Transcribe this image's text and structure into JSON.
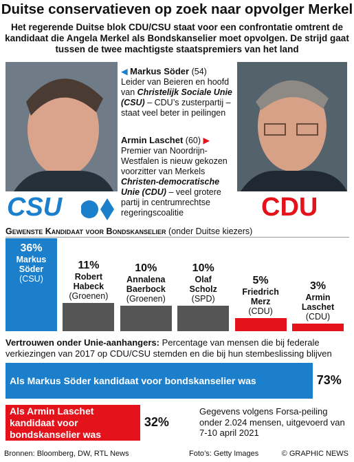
{
  "header": {
    "title": "Duitse conservatieven op zoek naar opvolger Merkel",
    "subtitle": "Het regerende Duitse blok CDU/CSU staat voor een confrontatie omtrent de kandidaat die Angela Merkel als Bondskanselier moet opvolgen. De strijd gaat tussen de twee machtigste staatspremiers van het land"
  },
  "profiles": [
    {
      "name": "Markus Söder",
      "age": "(54)",
      "parts": [
        "Leider van Beieren en hoofd van ",
        "Christelijk Sociale Unie (CSU)",
        " – CDU’s zusterpartij – staat veel beter in peilingen"
      ],
      "logo": "CSU"
    },
    {
      "name": "Armin Laschet",
      "age": "(60)",
      "parts": [
        "Premier van Noordrijn-Westfalen is nieuw gekozen voorzitter van Merkels ",
        "Christen-democratische Unie (CDU)",
        " – veel grotere partij in centrumrechtse regeringscoalitie"
      ],
      "logo": "CDU"
    }
  ],
  "chart_data": [
    {
      "type": "bar",
      "title": "Gewenste Kandidaat voor Bondskanselier",
      "subtitle": "(onder Duitse kiezers)",
      "categories": [
        "Markus Söder",
        "Robert Habeck",
        "Annalena Baerbock",
        "Olaf Scholz",
        "Friedrich Merz",
        "Armin Laschet"
      ],
      "parties": [
        "(CSU)",
        "(Groenen)",
        "(Groenen)",
        "(SPD)",
        "(CDU)",
        "(CDU)"
      ],
      "values": [
        36,
        11,
        10,
        10,
        5,
        3
      ],
      "value_labels": [
        "36%",
        "11%",
        "10%",
        "10%",
        "5%",
        "3%"
      ],
      "colors": [
        "#1b7fcc",
        "#555555",
        "#555555",
        "#555555",
        "#e3121b",
        "#e3121b"
      ]
    },
    {
      "type": "hbar",
      "title": "Vertrouwen onder Unie-aanhangers:",
      "subtitle": "Percentage van mensen die bij federale verkiezingen van 2017 op CDU/CSU stemden en die bij hun stembeslissing blijven",
      "categories": [
        "Als Markus Söder kandidaat voor bondskanselier was",
        "Als Armin Laschet kandidaat voor bondskanselier was"
      ],
      "values": [
        73,
        32
      ],
      "value_labels": [
        "73%",
        "32%"
      ],
      "colors": [
        "#1b7fcc",
        "#e3121b"
      ],
      "note": "Gegevens volgens Forsa-peiling onder 2.024 mensen, uitgevoerd van 7-10 april 2021"
    }
  ],
  "footer": {
    "sources": "Bronnen: Bloomberg, DW, RTL News",
    "photos": "Foto’s: Getty Images",
    "credit": "© GRAPHIC NEWS"
  }
}
